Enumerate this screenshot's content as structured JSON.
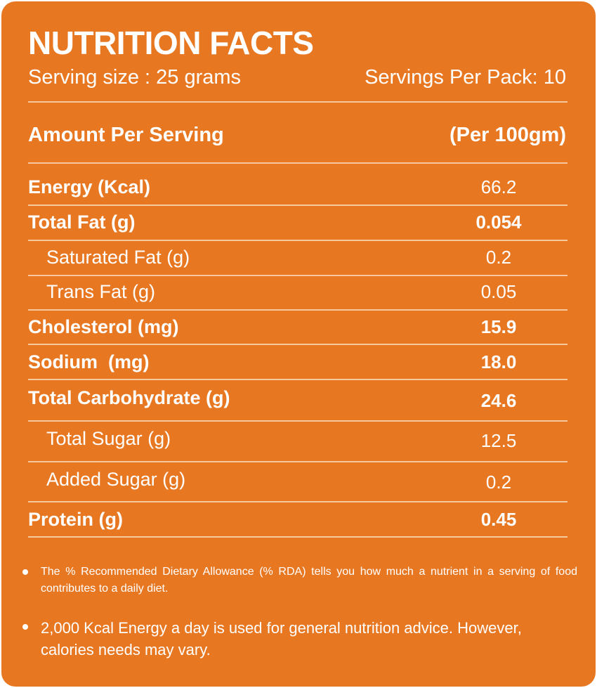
{
  "header": {
    "title": "NUTRITION FACTS",
    "serving_size": "Serving size : 25 grams",
    "servings_per_pack": "Servings Per Pack: 10"
  },
  "table": {
    "header_left": "Amount Per Serving",
    "header_right": "(Per 100gm)",
    "rows": [
      {
        "label": "Energy (Kcal)",
        "value": "66.2"
      },
      {
        "label": "Total Fat (g)",
        "value": "0.054"
      },
      {
        "label": "Saturated Fat (g)",
        "value": "0.2"
      },
      {
        "label": "Trans Fat (g)",
        "value": "0.05"
      },
      {
        "label": "Cholesterol (mg)",
        "value": "15.9"
      },
      {
        "label": "Sodium  (mg)",
        "value": "18.0"
      },
      {
        "label": "Total Carbohydrate (g)",
        "value": "24.6"
      },
      {
        "label": "Total Sugar (g)",
        "value": "12.5"
      },
      {
        "label": "Added Sugar (g)",
        "value": "0.2"
      },
      {
        "label": "Protein (g)",
        "value": "0.45"
      }
    ]
  },
  "notes": [
    "The % Recommended Dietary Allowance (% RDA) tells you how much a nutrient in a serving of food contributes to a daily diet.",
    "2,000 Kcal Energy a day is used for general nutrition advice. However, calories needs may vary."
  ],
  "colors": {
    "background": "#e87722",
    "text": "#ffffff",
    "divider": "#f7c8a0"
  }
}
